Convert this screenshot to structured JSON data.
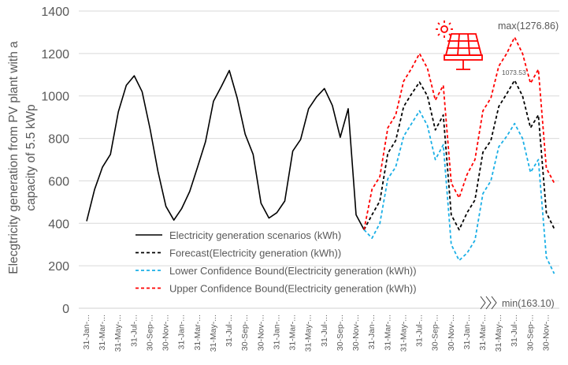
{
  "chart_data": {
    "type": "line",
    "title": "",
    "ylabel_lines": [
      "Elecgtricity generation from PV plant with a",
      "capacity of 5.5 kWp"
    ],
    "xlabel": "",
    "ylim": [
      0,
      1400
    ],
    "yticks": [
      0,
      200,
      400,
      600,
      800,
      1000,
      1200,
      1400
    ],
    "grid": true,
    "legend_position": "bottom-center (inside plot)",
    "x_tick_labels": [
      "31-Jan-...",
      "31-Mar-...",
      "31-May-...",
      "31-Jul-...",
      "30-Sep-...",
      "30-Nov-...",
      "31-Jan-...",
      "31-Mar-...",
      "31-May-...",
      "31-Jul-...",
      "30-Sep-...",
      "30-Nov-...",
      "31-Jan-...",
      "31-Mar-...",
      "31-May-...",
      "31-Jul-...",
      "30-Sep-...",
      "30-Nov-...",
      "31-Jan-...",
      "31-Mar-...",
      "31-May-...",
      "31-Jul-...",
      "30-Sep-...",
      "30-Nov-...",
      "31-Jan-...",
      "31-Mar-...",
      "31-May-...",
      "31-Jul-...",
      "30-Sep-...",
      "30-Nov-..."
    ],
    "months_total": 60,
    "series": [
      {
        "name": "Electricity generation scenarios (kWh)",
        "color": "#000000",
        "dashed": false,
        "start_index": 0,
        "values": [
          410,
          560,
          665,
          725,
          925,
          1050,
          1095,
          1020,
          845,
          645,
          480,
          415,
          470,
          550,
          665,
          785,
          975,
          1045,
          1120,
          990,
          820,
          725,
          495,
          425,
          450,
          505,
          740,
          795,
          940,
          995,
          1035,
          955,
          805,
          940,
          440,
          370
        ]
      },
      {
        "name": "Forecast(Electricity generation (kWh))",
        "color": "#000000",
        "dashed": true,
        "start_index": 35,
        "values": [
          370,
          440,
          505,
          730,
          790,
          950,
          1010,
          1065,
          1000,
          840,
          910,
          440,
          370,
          450,
          510,
          735,
          790,
          950,
          1010,
          1073.53,
          1000,
          850,
          910,
          450,
          375
        ]
      },
      {
        "name": "Lower Confidence Bound(Electricity generation (kWh))",
        "color": "#1AAFE6",
        "dashed": true,
        "start_index": 35,
        "values": [
          370,
          330,
          400,
          610,
          665,
          810,
          870,
          930,
          860,
          700,
          770,
          300,
          225,
          260,
          320,
          540,
          600,
          760,
          810,
          870,
          800,
          640,
          700,
          240,
          163.1
        ]
      },
      {
        "name": "Upper Confidence Bound(Electricity generation (kWh))",
        "color": "#FF0000",
        "dashed": true,
        "start_index": 35,
        "values": [
          370,
          560,
          620,
          850,
          910,
          1070,
          1130,
          1200,
          1130,
          980,
          1050,
          590,
          520,
          630,
          700,
          930,
          990,
          1140,
          1200,
          1276.86,
          1200,
          1060,
          1125,
          660,
          590
        ]
      }
    ],
    "annotations": {
      "max_label": "max(1276.86)",
      "forecast_peak_label": "1073.53",
      "min_label": "min(163.10)"
    }
  },
  "icons": {
    "solar": "solar-panel-icon",
    "chevrons": "triple-chevron-right-icon"
  },
  "colors": {
    "grid": "#D9D9D9",
    "text": "#595959",
    "accent": "#FF0000"
  }
}
